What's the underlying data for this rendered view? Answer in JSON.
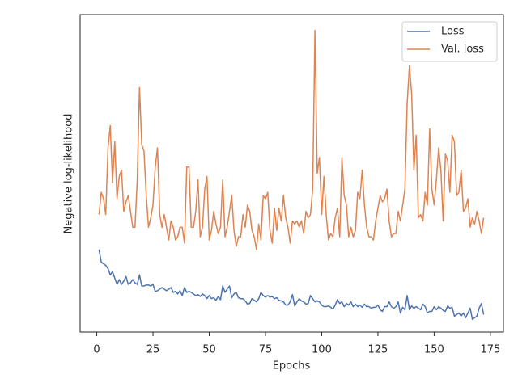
{
  "chart_data": {
    "type": "line",
    "xlabel": "Epochs",
    "ylabel": "Negative log-likelihood",
    "x": [
      1,
      2,
      3,
      4,
      5,
      6,
      7,
      8,
      9,
      10,
      11,
      12,
      13,
      14,
      15,
      16,
      17,
      18,
      19,
      20,
      21,
      22,
      23,
      24,
      25,
      26,
      27,
      28,
      29,
      30,
      31,
      32,
      33,
      34,
      35,
      36,
      37,
      38,
      39,
      40,
      41,
      42,
      43,
      44,
      45,
      46,
      47,
      48,
      49,
      50,
      51,
      52,
      53,
      54,
      55,
      56,
      57,
      58,
      59,
      60,
      61,
      62,
      63,
      64,
      65,
      66,
      67,
      68,
      69,
      70,
      71,
      72,
      73,
      74,
      75,
      76,
      77,
      78,
      79,
      80,
      81,
      82,
      83,
      84,
      85,
      86,
      87,
      88,
      89,
      90,
      91,
      92,
      93,
      94,
      95,
      96,
      97,
      98,
      99,
      100,
      101,
      102,
      103,
      104,
      105,
      106,
      107,
      108,
      109,
      110,
      111,
      112,
      113,
      114,
      115,
      116,
      117,
      118,
      119,
      120,
      121,
      122,
      123,
      124,
      125,
      126,
      127,
      128,
      129,
      130,
      131,
      132,
      133,
      134,
      135,
      136,
      137,
      138,
      139,
      140,
      141,
      142,
      143,
      144,
      145,
      146,
      147,
      148,
      149,
      150,
      151,
      152,
      153,
      154,
      155,
      156,
      157,
      158,
      159,
      160,
      161,
      162,
      163,
      164,
      165,
      166,
      167,
      168,
      169,
      170,
      171,
      172
    ],
    "series": [
      {
        "name": "Loss",
        "color": "#4c72b0",
        "values": [
          26,
          22,
          21.5,
          21,
          20,
          18,
          19,
          17,
          15,
          16.5,
          15,
          16,
          17.5,
          15,
          15.5,
          16.5,
          15.5,
          15,
          18,
          14.5,
          14.5,
          14.8,
          14.8,
          14.5,
          15,
          12.8,
          13,
          13.5,
          14,
          13.5,
          13,
          13.5,
          14,
          12.5,
          12.8,
          12,
          13,
          11.5,
          14,
          12.5,
          12.8,
          12.5,
          12,
          11.5,
          11.8,
          11.2,
          12,
          11.5,
          10.5,
          11.5,
          10.5,
          10.8,
          10,
          11.2,
          10.2,
          14.5,
          12.5,
          13.5,
          14.5,
          10.8,
          12,
          12.5,
          10.8,
          10.5,
          10.5,
          9.8,
          8.8,
          9,
          10.5,
          10,
          9.5,
          10.5,
          12.5,
          11.5,
          11,
          11.5,
          11,
          11.2,
          10.5,
          10.8,
          10,
          9.8,
          9.5,
          8.5,
          8.5,
          9.5,
          11.8,
          8.2,
          9.5,
          10.5,
          9.8,
          9.5,
          8.8,
          9,
          11.5,
          10.5,
          9.5,
          9.8,
          9.5,
          8.5,
          8,
          8,
          8.2,
          7.8,
          7.2,
          8.5,
          10.2,
          9,
          9.5,
          8,
          9,
          8.5,
          9.5,
          8,
          8.8,
          8,
          8.5,
          7.8,
          8.8,
          8,
          8,
          7.5,
          7.8,
          7.8,
          8.5,
          7,
          6.5,
          8,
          8,
          9.5,
          8,
          7.5,
          8,
          9.5,
          6,
          7.8,
          7,
          11.5,
          7,
          8.2,
          7.5,
          8,
          7.5,
          7,
          8.8,
          8,
          6,
          6.5,
          6.5,
          8,
          7,
          8,
          7.5,
          6.8,
          6.5,
          8.2,
          7.5,
          7.8,
          5,
          5.5,
          6,
          5,
          6,
          4.5,
          6,
          7.5,
          4,
          4.5,
          5,
          7.5,
          9,
          5.5
        ]
      },
      {
        "name": "Val. loss",
        "color": "#dd8452",
        "values": [
          37,
          44,
          42,
          37,
          58,
          65,
          47,
          60,
          42,
          49,
          51,
          38,
          41,
          43,
          38,
          33,
          33,
          48,
          77,
          59,
          57,
          43,
          33,
          36,
          40,
          52,
          58,
          37,
          33,
          37,
          33,
          29,
          35,
          33,
          29,
          30,
          33,
          33,
          28,
          52,
          52,
          33,
          33,
          38,
          48,
          30,
          33,
          45,
          49,
          29,
          32,
          38,
          34,
          31,
          33,
          48,
          30,
          33,
          38,
          43,
          32,
          27,
          30,
          30,
          37,
          33,
          40,
          38,
          32,
          30,
          26,
          34,
          29,
          43,
          42,
          44,
          32,
          28,
          39,
          32,
          39,
          35,
          43,
          36,
          33,
          28,
          35,
          34,
          35,
          33,
          35,
          31,
          38,
          36,
          37,
          45,
          95,
          50,
          55,
          37,
          49,
          37,
          29,
          31,
          30,
          36,
          39,
          30,
          55,
          43,
          40,
          30,
          33,
          30,
          32,
          44,
          42,
          51,
          40,
          33,
          30,
          30,
          29,
          35,
          39,
          43,
          41,
          42,
          45,
          35,
          30,
          31,
          31,
          38,
          35,
          40,
          45,
          72,
          84,
          75,
          51,
          62,
          36,
          37,
          35,
          44,
          40,
          64,
          45,
          40,
          48,
          58,
          51,
          35,
          56,
          54,
          44,
          62,
          60,
          43,
          44,
          51,
          38,
          39,
          42,
          33,
          36,
          34,
          38,
          35,
          31,
          36
        ]
      }
    ],
    "xlim": [
      -7.4,
      180.8
    ],
    "xticks": [
      0,
      25,
      50,
      75,
      100,
      125,
      150,
      175
    ],
    "ylim": [
      0,
      100
    ],
    "legend": "upper right"
  }
}
